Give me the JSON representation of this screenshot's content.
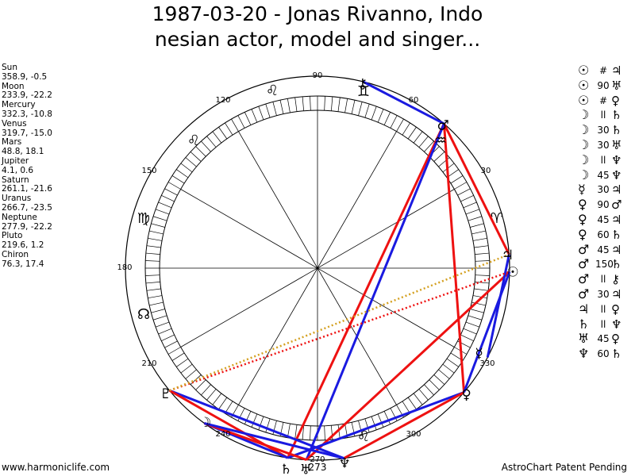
{
  "header": {
    "title_line1": "1987-03-20 - Jonas Rivanno, Indo",
    "title_line2": "nesian actor, model and singer..."
  },
  "positions": [
    {
      "name": "Sun",
      "value": "358.9, -0.5"
    },
    {
      "name": "Moon",
      "value": "233.9, -22.2"
    },
    {
      "name": "Mercury",
      "value": "332.3, -10.8"
    },
    {
      "name": "Venus",
      "value": "319.7, -15.0"
    },
    {
      "name": "Mars",
      "value": "48.8, 18.1"
    },
    {
      "name": "Jupiter",
      "value": "4.1, 0.6"
    },
    {
      "name": "Saturn",
      "value": "261.1, -21.6"
    },
    {
      "name": "Uranus",
      "value": "266.7, -23.5"
    },
    {
      "name": "Neptune",
      "value": "277.9, -22.2"
    },
    {
      "name": "Pluto",
      "value": "219.6, 1.2"
    },
    {
      "name": "Chiron",
      "value": "76.3, 17.4"
    }
  ],
  "glyphs": {
    "Sun": "☉",
    "Moon": "☽",
    "Mercury": "☿",
    "Venus": "♀",
    "Mars": "♂",
    "Jupiter": "♃",
    "Saturn": "♄",
    "Uranus": "♅",
    "Neptune": "♆",
    "Pluto": "♇",
    "Chiron": "⚷",
    "Node": "☊",
    "Aries": "♈",
    "Gemini": "♊",
    "Leo": "♌",
    "Virgo": "♍",
    "Aquarius": "♒"
  },
  "aspects": [
    {
      "p1": "☉",
      "type": "#",
      "p2": "♃"
    },
    {
      "p1": "☉",
      "type": "90",
      "p2": "♅"
    },
    {
      "p1": "☉",
      "type": "#",
      "p2": "♀"
    },
    {
      "p1": "☽",
      "type": "ll",
      "p2": "♄"
    },
    {
      "p1": "☽",
      "type": "30",
      "p2": "♄"
    },
    {
      "p1": "☽",
      "type": "30",
      "p2": "♅"
    },
    {
      "p1": "☽",
      "type": "ll",
      "p2": "♆"
    },
    {
      "p1": "☽",
      "type": "45",
      "p2": "♆"
    },
    {
      "p1": "☿",
      "type": "30",
      "p2": "♃"
    },
    {
      "p1": "♀",
      "type": "90",
      "p2": "♂"
    },
    {
      "p1": "♀",
      "type": "45",
      "p2": "♃"
    },
    {
      "p1": "♀",
      "type": "60",
      "p2": "♄"
    },
    {
      "p1": "♂",
      "type": "45",
      "p2": "♃"
    },
    {
      "p1": "♂",
      "type": "150",
      "p2": "♄"
    },
    {
      "p1": "♂",
      "type": "ll",
      "p2": "⚷"
    },
    {
      "p1": "♂",
      "type": "30",
      "p2": "♃"
    },
    {
      "p1": "♃",
      "type": "ll",
      "p2": "♀"
    },
    {
      "p1": "♄",
      "type": "ll",
      "p2": "♆"
    },
    {
      "p1": "♅",
      "type": "45",
      "p2": "♀"
    },
    {
      "p1": "♆",
      "type": "60",
      "p2": "♄"
    }
  ],
  "degree_labels": [
    "90",
    "60",
    "30",
    "120",
    "150",
    "180",
    "210",
    "240",
    "270",
    "273",
    "300",
    "330"
  ],
  "footer": {
    "left": "www.harmoniclife.com",
    "right": "AstroChart Patent Pending"
  },
  "colors": {
    "red": "#ee1111",
    "blue": "#1a1ae0",
    "gold": "#d4a020"
  }
}
